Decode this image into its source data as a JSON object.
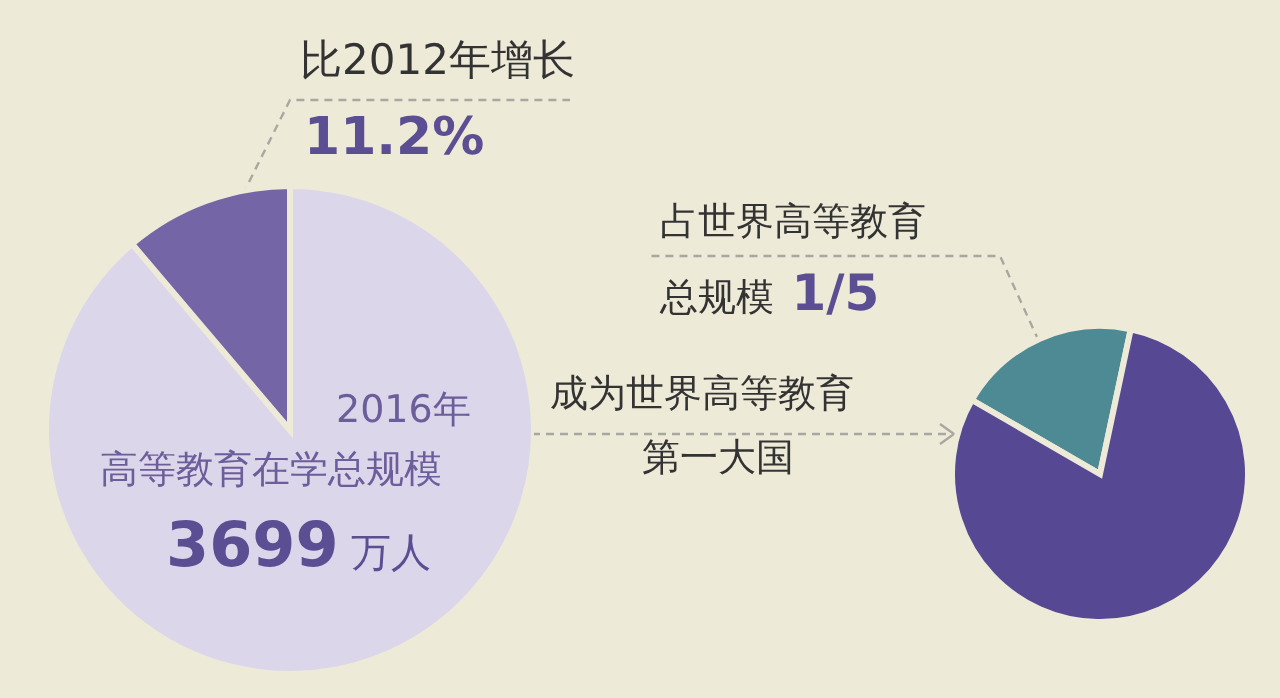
{
  "chart_data": [
    {
      "type": "pie",
      "categories": [
        null,
        null
      ],
      "values": [
        88.8,
        11.2
      ],
      "colors": [
        "#dcd6ea",
        "#7465a6"
      ],
      "value_labels": [
        null,
        "11.2%"
      ],
      "annotations": [
        "比2012年增长",
        "2016年",
        "高等教育在学总规模",
        "3699 万人"
      ]
    },
    {
      "type": "pie",
      "categories": [
        null,
        null
      ],
      "values": [
        20,
        80
      ],
      "colors": [
        "#4e8a93",
        "#574893"
      ],
      "annotations": [
        "占世界高等教育",
        "总规模 1/5",
        "成为世界高等教育",
        "第一大国"
      ]
    }
  ]
}
